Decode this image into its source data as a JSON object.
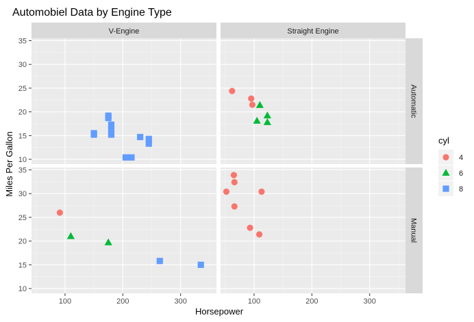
{
  "chart_data": {
    "type": "scatter",
    "title": "Automobiel Data by Engine Type",
    "xlabel": "Horsepower",
    "ylabel": "Miles Per Gallon",
    "xlim": [
      42,
      362
    ],
    "ylim": [
      9,
      35.5
    ],
    "x_ticks": [
      100,
      200,
      300
    ],
    "y_ticks": [
      10,
      15,
      20,
      25,
      30,
      35
    ],
    "grid": true,
    "facet_cols": [
      "V-Engine",
      "Straight Engine"
    ],
    "facet_rows": [
      "Automatic",
      "Manual"
    ],
    "legend": {
      "title": "cyl",
      "position": "right",
      "entries": [
        {
          "label": "4",
          "color": "#F8766D",
          "shape": "circle"
        },
        {
          "label": "6",
          "color": "#00BA38",
          "shape": "triangle"
        },
        {
          "label": "8",
          "color": "#619CFF",
          "shape": "square"
        }
      ]
    },
    "series": [
      {
        "cyl": "4",
        "points": [
          {
            "vs": "Straight Engine",
            "am": "Automatic",
            "x": 62,
            "y": 24.4
          },
          {
            "vs": "Straight Engine",
            "am": "Automatic",
            "x": 95,
            "y": 22.8
          },
          {
            "vs": "Straight Engine",
            "am": "Automatic",
            "x": 97,
            "y": 21.5
          },
          {
            "vs": "V-Engine",
            "am": "Manual",
            "x": 91,
            "y": 26.0
          },
          {
            "vs": "Straight Engine",
            "am": "Manual",
            "x": 65,
            "y": 33.9
          },
          {
            "vs": "Straight Engine",
            "am": "Manual",
            "x": 66,
            "y": 32.4
          },
          {
            "vs": "Straight Engine",
            "am": "Manual",
            "x": 52,
            "y": 30.4
          },
          {
            "vs": "Straight Engine",
            "am": "Manual",
            "x": 113,
            "y": 30.4
          },
          {
            "vs": "Straight Engine",
            "am": "Manual",
            "x": 66,
            "y": 27.3
          },
          {
            "vs": "Straight Engine",
            "am": "Manual",
            "x": 93,
            "y": 22.8
          },
          {
            "vs": "Straight Engine",
            "am": "Manual",
            "x": 109,
            "y": 21.4
          }
        ]
      },
      {
        "cyl": "6",
        "points": [
          {
            "vs": "Straight Engine",
            "am": "Automatic",
            "x": 110,
            "y": 21.4
          },
          {
            "vs": "Straight Engine",
            "am": "Automatic",
            "x": 105,
            "y": 18.1
          },
          {
            "vs": "Straight Engine",
            "am": "Automatic",
            "x": 123,
            "y": 19.2
          },
          {
            "vs": "Straight Engine",
            "am": "Automatic",
            "x": 123,
            "y": 17.8
          },
          {
            "vs": "V-Engine",
            "am": "Manual",
            "x": 110,
            "y": 21.0
          },
          {
            "vs": "V-Engine",
            "am": "Manual",
            "x": 175,
            "y": 19.7
          }
        ]
      },
      {
        "cyl": "8",
        "points": [
          {
            "vs": "V-Engine",
            "am": "Automatic",
            "x": 175,
            "y": 18.7
          },
          {
            "vs": "V-Engine",
            "am": "Automatic",
            "x": 175,
            "y": 19.2
          },
          {
            "vs": "V-Engine",
            "am": "Automatic",
            "x": 180,
            "y": 16.4
          },
          {
            "vs": "V-Engine",
            "am": "Automatic",
            "x": 180,
            "y": 17.3
          },
          {
            "vs": "V-Engine",
            "am": "Automatic",
            "x": 180,
            "y": 15.2
          },
          {
            "vs": "V-Engine",
            "am": "Automatic",
            "x": 150,
            "y": 15.5
          },
          {
            "vs": "V-Engine",
            "am": "Automatic",
            "x": 150,
            "y": 15.2
          },
          {
            "vs": "V-Engine",
            "am": "Automatic",
            "x": 230,
            "y": 14.7
          },
          {
            "vs": "V-Engine",
            "am": "Automatic",
            "x": 245,
            "y": 14.3
          },
          {
            "vs": "V-Engine",
            "am": "Automatic",
            "x": 245,
            "y": 13.3
          },
          {
            "vs": "V-Engine",
            "am": "Automatic",
            "x": 205,
            "y": 10.4
          },
          {
            "vs": "V-Engine",
            "am": "Automatic",
            "x": 215,
            "y": 10.4
          },
          {
            "vs": "V-Engine",
            "am": "Manual",
            "x": 264,
            "y": 15.8
          },
          {
            "vs": "V-Engine",
            "am": "Manual",
            "x": 335,
            "y": 15.0
          }
        ]
      }
    ]
  }
}
